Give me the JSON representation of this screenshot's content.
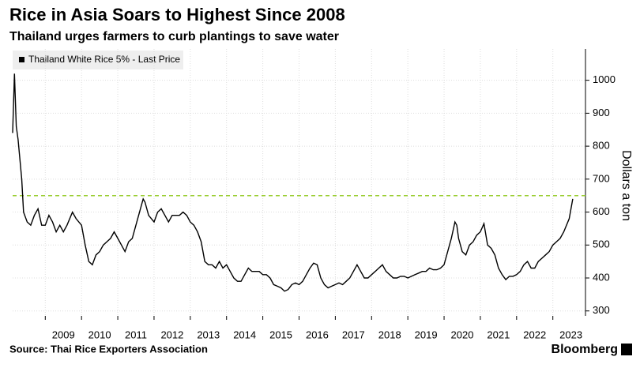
{
  "chart_data": {
    "type": "line",
    "title": "Rice in Asia Soars to Highest Since 2008",
    "subtitle": "Thailand urges farmers to curb plantings to save water",
    "y_axis_label": "Dollars a ton",
    "source": "Source: Thai Rice Exporters Association",
    "brand": "Bloomberg",
    "reference_line": {
      "value": 650,
      "color": "#9acd32"
    },
    "grid": true,
    "legend": "top-left",
    "xlim": [
      2008.1,
      2023.9
    ],
    "xticks": [
      2009,
      2010,
      2011,
      2012,
      2013,
      2014,
      2015,
      2016,
      2017,
      2018,
      2019,
      2020,
      2021,
      2022,
      2023
    ],
    "ylim": [
      285,
      1095
    ],
    "yticks": [
      300,
      400,
      500,
      600,
      700,
      800,
      900,
      1000
    ],
    "x": [
      2008.1,
      2008.15,
      2008.2,
      2008.25,
      2008.3,
      2008.35,
      2008.4,
      2008.5,
      2008.6,
      2008.7,
      2008.8,
      2008.9,
      2009.0,
      2009.1,
      2009.2,
      2009.3,
      2009.4,
      2009.5,
      2009.6,
      2009.75,
      2009.85,
      2010.0,
      2010.1,
      2010.2,
      2010.3,
      2010.4,
      2010.5,
      2010.6,
      2010.7,
      2010.8,
      2010.9,
      2011.0,
      2011.1,
      2011.2,
      2011.3,
      2011.4,
      2011.5,
      2011.6,
      2011.7,
      2011.75,
      2011.85,
      2012.0,
      2012.1,
      2012.2,
      2012.3,
      2012.4,
      2012.5,
      2012.6,
      2012.7,
      2012.8,
      2012.9,
      2013.0,
      2013.1,
      2013.2,
      2013.3,
      2013.4,
      2013.5,
      2013.6,
      2013.7,
      2013.8,
      2013.9,
      2014.0,
      2014.1,
      2014.2,
      2014.3,
      2014.4,
      2014.5,
      2014.6,
      2014.7,
      2014.8,
      2014.9,
      2015.0,
      2015.1,
      2015.2,
      2015.3,
      2015.4,
      2015.5,
      2015.6,
      2015.7,
      2015.8,
      2015.9,
      2016.0,
      2016.1,
      2016.2,
      2016.3,
      2016.4,
      2016.5,
      2016.6,
      2016.7,
      2016.8,
      2016.9,
      2017.0,
      2017.1,
      2017.2,
      2017.3,
      2017.4,
      2017.5,
      2017.6,
      2017.7,
      2017.8,
      2017.9,
      2018.0,
      2018.1,
      2018.2,
      2018.3,
      2018.4,
      2018.5,
      2018.6,
      2018.7,
      2018.8,
      2018.9,
      2019.0,
      2019.1,
      2019.2,
      2019.3,
      2019.4,
      2019.5,
      2019.6,
      2019.7,
      2019.8,
      2019.9,
      2020.0,
      2020.1,
      2020.2,
      2020.3,
      2020.35,
      2020.4,
      2020.5,
      2020.6,
      2020.7,
      2020.8,
      2020.9,
      2021.0,
      2021.1,
      2021.2,
      2021.3,
      2021.4,
      2021.5,
      2021.6,
      2021.7,
      2021.8,
      2021.9,
      2022.0,
      2022.1,
      2022.2,
      2022.3,
      2022.4,
      2022.5,
      2022.6,
      2022.7,
      2022.8,
      2022.9,
      2023.0,
      2023.1,
      2023.2,
      2023.3,
      2023.45,
      2023.55
    ],
    "series": [
      {
        "name": "Thailand White Rice 5% - Last Price",
        "color": "#000000",
        "values": [
          840,
          1020,
          860,
          820,
          760,
          700,
          600,
          570,
          560,
          590,
          610,
          560,
          560,
          590,
          570,
          540,
          560,
          540,
          560,
          600,
          580,
          560,
          500,
          450,
          440,
          470,
          480,
          500,
          510,
          520,
          540,
          520,
          500,
          480,
          510,
          520,
          560,
          600,
          640,
          630,
          590,
          570,
          600,
          610,
          590,
          570,
          590,
          590,
          590,
          600,
          590,
          570,
          560,
          540,
          510,
          450,
          440,
          440,
          430,
          450,
          430,
          440,
          420,
          400,
          390,
          390,
          410,
          430,
          420,
          420,
          420,
          410,
          410,
          400,
          380,
          375,
          370,
          360,
          365,
          380,
          385,
          380,
          390,
          410,
          430,
          445,
          440,
          400,
          380,
          370,
          375,
          380,
          385,
          380,
          390,
          400,
          420,
          440,
          420,
          400,
          400,
          410,
          420,
          430,
          440,
          420,
          410,
          400,
          400,
          405,
          405,
          400,
          405,
          410,
          415,
          420,
          420,
          430,
          425,
          425,
          430,
          440,
          480,
          520,
          570,
          560,
          520,
          480,
          470,
          500,
          510,
          530,
          540,
          565,
          500,
          490,
          470,
          430,
          410,
          395,
          405,
          405,
          410,
          420,
          440,
          450,
          430,
          430,
          450,
          460,
          470,
          480,
          500,
          510,
          520,
          540,
          580,
          640
        ]
      }
    ]
  }
}
